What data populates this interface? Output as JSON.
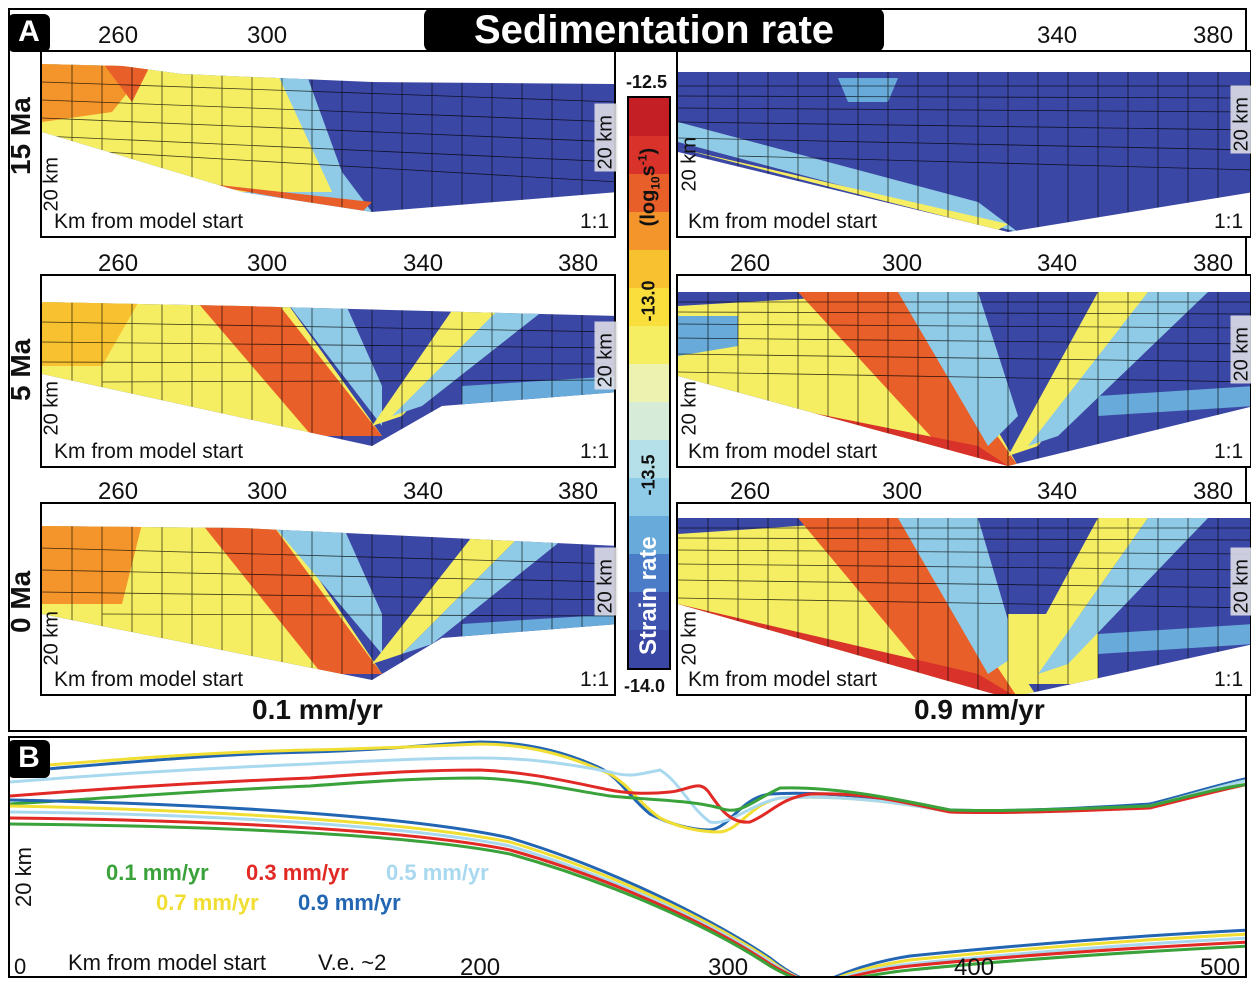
{
  "title": "Sedimentation rate",
  "panel_a_label": "A",
  "panel_b_label": "B",
  "row_labels": [
    "15 Ma",
    "5 Ma",
    "0 Ma"
  ],
  "left_ticks": [
    "260",
    "300",
    "340",
    "380"
  ],
  "right_ticks": [
    "260",
    "300",
    "340",
    "380"
  ],
  "top_left_ticks": [
    "260",
    "300"
  ],
  "top_right_ticks": [
    "340",
    "380"
  ],
  "km_from_start": "Km from model start",
  "scale_label": "1:1",
  "depth_label": "20 km",
  "rate_left": "0.1 mm/yr",
  "rate_right": "0.9 mm/yr",
  "colorbar": {
    "top": "-12.5",
    "mid1": "-13.0",
    "mid2": "-13.5",
    "bottom": "-14.0",
    "unit": "(log10s-1)",
    "unit_base": "(log",
    "unit_sub": "10",
    "unit_s": "s",
    "unit_sup": "-1",
    "unit_close": ")",
    "title": "Strain rate",
    "colors": [
      "#3b47a4",
      "#3f55b0",
      "#4a7cc7",
      "#68aad9",
      "#8fcbe6",
      "#b5e0ea",
      "#d7ecd8",
      "#eef2b0",
      "#f6ee62",
      "#f9de3c",
      "#f8c12f",
      "#f3952b",
      "#e85f2a",
      "#d8322a",
      "#c51f26"
    ]
  },
  "panel_b": {
    "depth_label": "20 km",
    "x_origin": "0",
    "km_from_start": "Km from model start",
    "ve": "V.e. ~2",
    "ticks": [
      "200",
      "300",
      "400",
      "500"
    ],
    "legend": [
      {
        "label": "0.1 mm/yr",
        "color": "#3aa23a"
      },
      {
        "label": "0.3 mm/yr",
        "color": "#e12a26"
      },
      {
        "label": "0.5 mm/yr",
        "color": "#a9d9ef"
      },
      {
        "label": "0.7 mm/yr",
        "color": "#f0de32"
      },
      {
        "label": "0.9 mm/yr",
        "color": "#2266b3"
      }
    ]
  }
}
